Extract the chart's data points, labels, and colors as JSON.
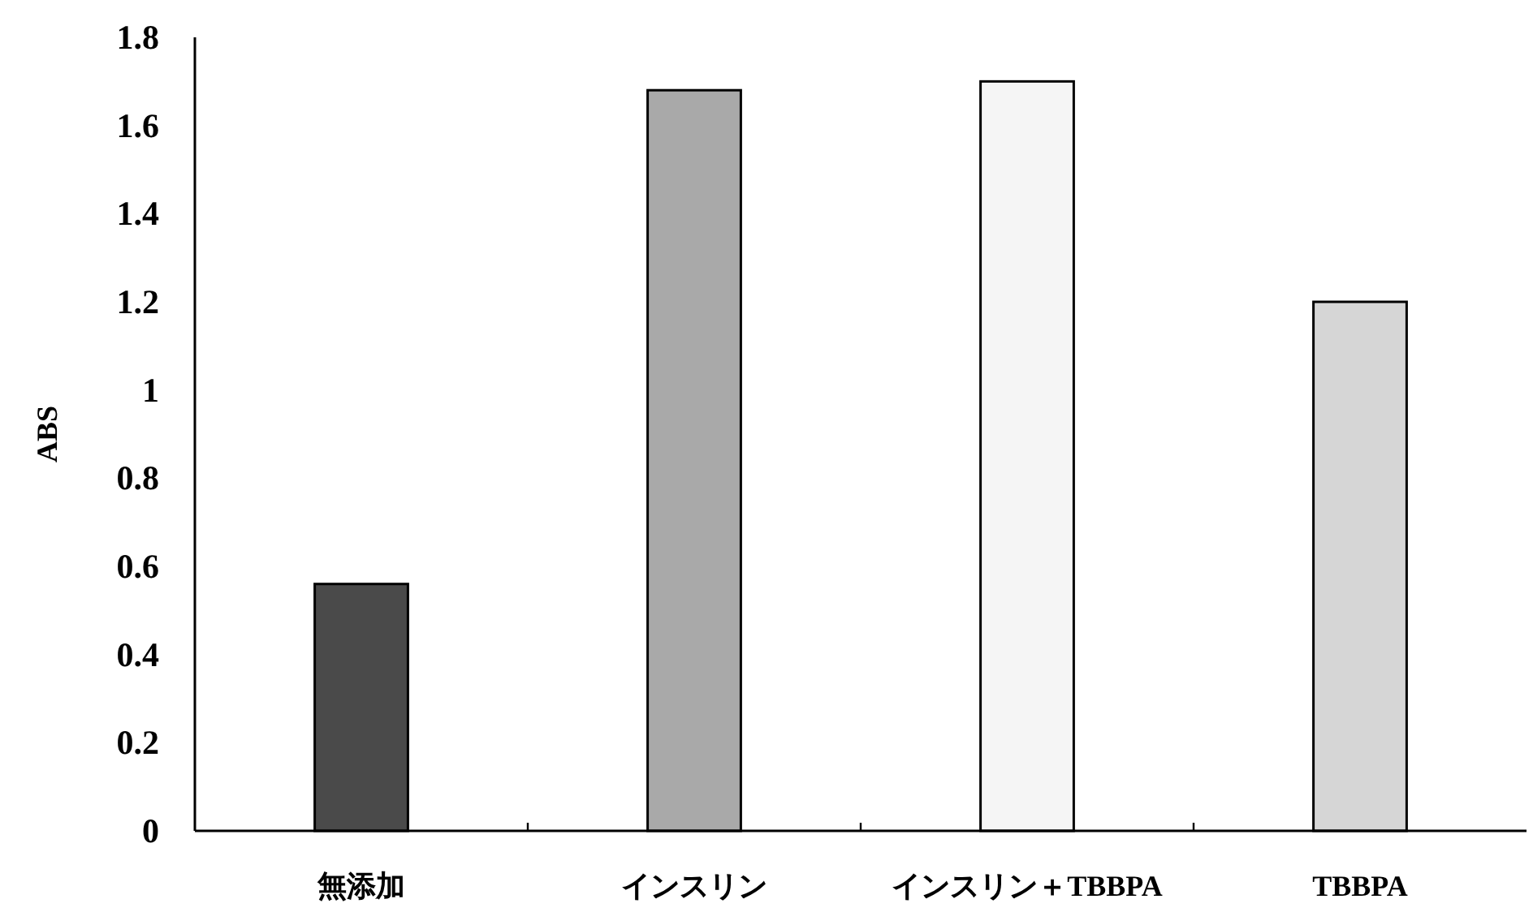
{
  "chart_data": {
    "type": "bar",
    "ylabel": "ABS",
    "categories": [
      "無添加",
      "インスリン",
      "インスリン＋TBBPA",
      "TBBPA"
    ],
    "values": [
      0.56,
      1.68,
      1.7,
      1.2
    ],
    "colors": [
      "#4a4a4a",
      "#a9a9a9",
      "#f5f5f5",
      "#d6d6d6"
    ],
    "ylim": [
      0,
      1.8
    ],
    "yticks": [
      {
        "value": 0,
        "label": "0"
      },
      0.2,
      0.4,
      0.6,
      0.8,
      {
        "value": 1,
        "label": "1"
      },
      1.2,
      1.4,
      1.6,
      1.8
    ]
  }
}
